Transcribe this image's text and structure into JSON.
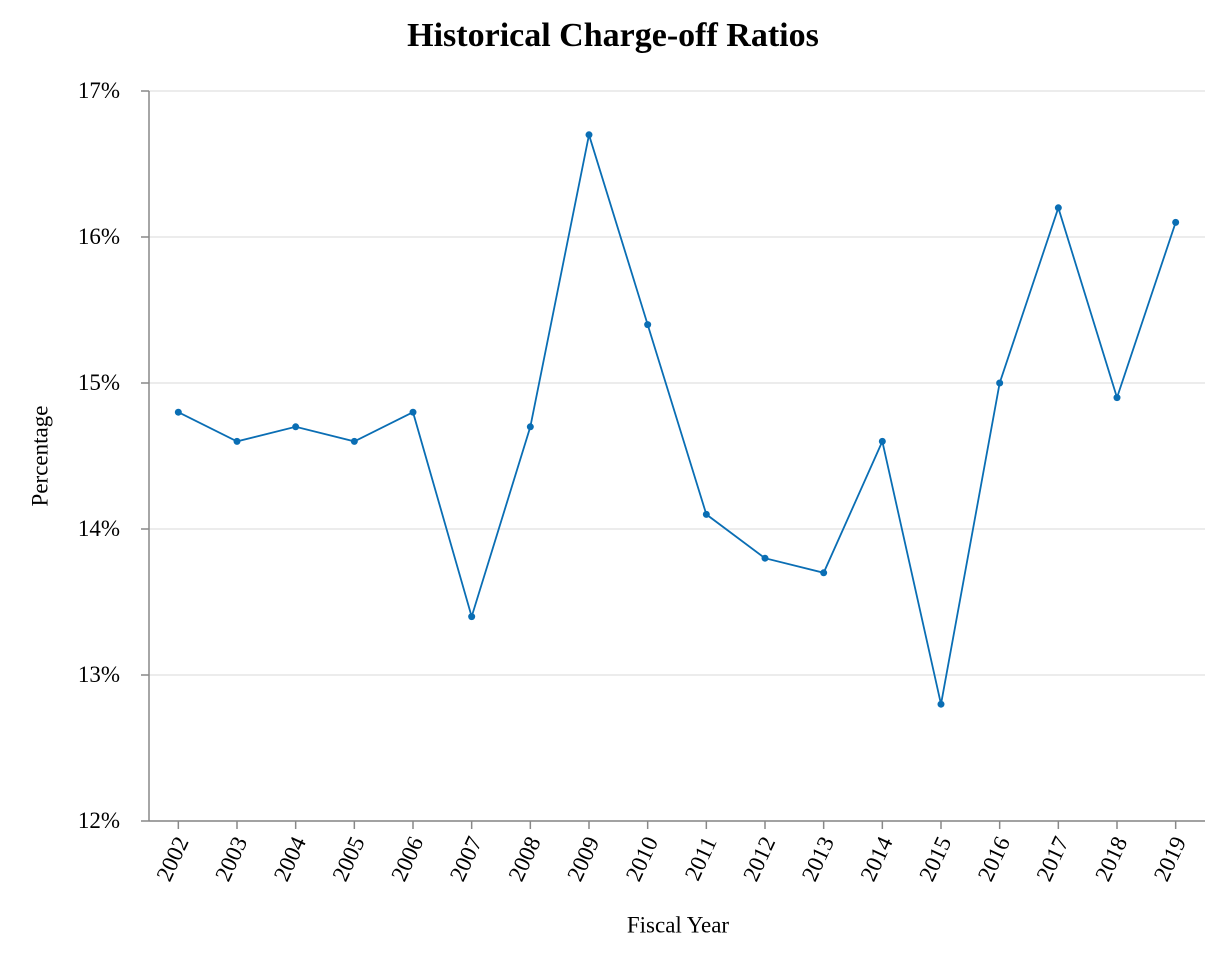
{
  "chart_data": {
    "type": "line",
    "title": "Historical Charge-off Ratios",
    "x_label": "Fiscal Year",
    "y_label": "Percentage",
    "categories": [
      "2002",
      "2003",
      "2004",
      "2005",
      "2006",
      "2007",
      "2008",
      "2009",
      "2010",
      "2011",
      "2012",
      "2013",
      "2014",
      "2015",
      "2016",
      "2017",
      "2018",
      "2019"
    ],
    "series": [
      {
        "color": "#0a6eb4",
        "values": [
          14.8,
          14.6,
          14.7,
          14.6,
          14.8,
          13.4,
          14.7,
          16.7,
          15.4,
          14.1,
          13.8,
          13.7,
          14.6,
          12.8,
          15.0,
          16.2,
          14.9,
          16.1
        ]
      }
    ],
    "ylim": [
      12,
      17
    ],
    "yticks": [
      {
        "value": 12,
        "label": "12%"
      },
      {
        "value": 13,
        "label": "13%"
      },
      {
        "value": 14,
        "label": "14%"
      },
      {
        "value": 15,
        "label": "15%"
      },
      {
        "value": 16,
        "label": "16%"
      },
      {
        "value": 17,
        "label": "17%"
      }
    ],
    "grid": true
  }
}
